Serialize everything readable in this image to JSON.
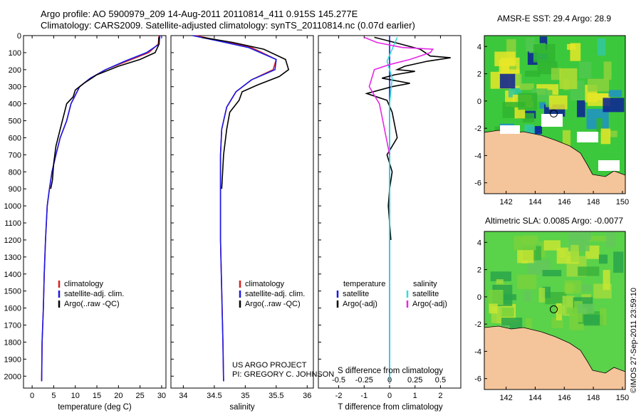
{
  "header": {
    "title_line1": "Argo profile: AO 5900979_209 14-Aug-2011 20110814_411 0.915S 145.277E",
    "title_line2": "Climatology: CARS2009. Satellite-adjusted climatology: synTS_20110814.nc (0.07d earlier)"
  },
  "colors": {
    "climatology": "#d62020",
    "satellite_adj": "#1a1ae6",
    "argo": "#000000",
    "salinity_satellite": "#33dddd",
    "salinity_argo": "#e628e6",
    "land": "#f4c49a",
    "sea_green": "#3cc83c"
  },
  "chart_data": [
    {
      "type": "line",
      "name": "temperature-profile",
      "xlabel": "temperature (deg C)",
      "xlim": [
        -2,
        31
      ],
      "ylim": [
        2070,
        0
      ],
      "xticks": [
        0,
        5,
        10,
        15,
        20,
        25,
        30
      ],
      "yticks": [
        0,
        100,
        200,
        300,
        400,
        500,
        600,
        700,
        800,
        900,
        1000,
        1100,
        1200,
        1300,
        1400,
        1500,
        1600,
        1700,
        1800,
        1900,
        2000
      ],
      "legend": [
        "climatology",
        "satellite-adj. clim.",
        "Argo(..raw -QC)"
      ],
      "series": [
        {
          "name": "climatology",
          "x": [
            29.4,
            29.2,
            27,
            22,
            17,
            13.5,
            11,
            9,
            8,
            6.5,
            5.5,
            4.6,
            4,
            3.5,
            3.1,
            2.8,
            2.6,
            2.3,
            2.2
          ],
          "y": [
            0,
            50,
            100,
            150,
            200,
            250,
            300,
            400,
            500,
            600,
            700,
            800,
            900,
            1000,
            1200,
            1400,
            1600,
            1800,
            2030
          ]
        },
        {
          "name": "satellite-adj. clim.",
          "x": [
            29.6,
            29.4,
            26.5,
            21.5,
            17,
            13.5,
            11,
            9,
            8,
            6.5,
            5.5,
            4.6,
            4,
            3.5,
            3.1,
            2.8,
            2.6,
            2.3,
            2.2
          ],
          "y": [
            0,
            50,
            100,
            150,
            200,
            250,
            300,
            400,
            500,
            600,
            700,
            800,
            900,
            1000,
            1200,
            1400,
            1600,
            1800,
            2030
          ]
        },
        {
          "name": "Argo(..raw -QC)",
          "x": [
            29.3,
            29.4,
            28.5,
            25,
            20,
            15,
            12,
            10,
            9.5,
            8,
            7.5,
            6.5,
            5.5,
            5,
            4.7,
            4.3
          ],
          "y": [
            10,
            50,
            100,
            140,
            180,
            230,
            280,
            320,
            360,
            400,
            450,
            550,
            650,
            750,
            850,
            900
          ]
        }
      ]
    },
    {
      "type": "line",
      "name": "salinity-profile",
      "xlabel": "salinity",
      "xlim": [
        33.8,
        36.1
      ],
      "ylim": [
        2070,
        0
      ],
      "xticks": [
        34,
        34.5,
        35,
        35.5,
        36
      ],
      "legend": [
        "climatology",
        "satellite-adj. clim.",
        "Argo(..raw -QC)"
      ],
      "series": [
        {
          "name": "climatology",
          "x": [
            34.2,
            34.6,
            35.1,
            35.5,
            35.45,
            35.1,
            34.85,
            34.7,
            34.62,
            34.6,
            34.6,
            34.6,
            34.62,
            34.64,
            34.65
          ],
          "y": [
            0,
            30,
            70,
            140,
            200,
            260,
            330,
            420,
            550,
            700,
            900,
            1200,
            1500,
            1800,
            2030
          ]
        },
        {
          "name": "satellite-adj. clim.",
          "x": [
            34.15,
            34.55,
            35.05,
            35.5,
            35.48,
            35.1,
            34.85,
            34.7,
            34.62,
            34.6,
            34.6,
            34.6,
            34.62,
            34.64,
            34.65
          ],
          "y": [
            0,
            30,
            70,
            140,
            200,
            260,
            330,
            420,
            550,
            700,
            900,
            1200,
            1500,
            1800,
            2030
          ]
        },
        {
          "name": "Argo(..raw -QC)",
          "x": [
            34.3,
            34.8,
            35.3,
            35.65,
            35.7,
            35.55,
            35.2,
            34.95,
            34.9,
            34.75,
            34.7,
            34.65,
            34.62
          ],
          "y": [
            10,
            40,
            80,
            140,
            200,
            240,
            290,
            330,
            380,
            450,
            550,
            700,
            900
          ]
        }
      ]
    },
    {
      "type": "line",
      "name": "difference-profile",
      "xlabel_top": "S difference from climatology",
      "xlabel": "T difference from climatology",
      "xlim": [
        -2.8,
        2.8
      ],
      "ylim": [
        2070,
        0
      ],
      "xticks_T": [
        -2,
        -1,
        0,
        1,
        2
      ],
      "xticks_S_labels": [
        "-0.5",
        "-0.25",
        "0",
        "0.25",
        "0.5"
      ],
      "legend": [
        "temperature",
        "satellite",
        "Argo(-adj)",
        "salinity",
        "satellite",
        "Argo(-adj)"
      ],
      "series": [
        {
          "name": "temperature satellite",
          "x": [
            0,
            0,
            0,
            0,
            0
          ],
          "y": [
            0,
            500,
            1000,
            1500,
            2030
          ]
        },
        {
          "name": "temperature Argo(-adj)",
          "x": [
            -0.6,
            0.2,
            1.2,
            1.6,
            2.4,
            1.5,
            0.6,
            0.3,
            1.0,
            0.2,
            -0.3,
            0.8,
            0.1,
            -0.9,
            -0.1,
            0.1,
            0.3,
            -0.1,
            0.1,
            0.0,
            -0.05,
            0.05
          ],
          "y": [
            10,
            40,
            80,
            120,
            130,
            150,
            180,
            200,
            210,
            230,
            250,
            280,
            300,
            340,
            380,
            450,
            600,
            700,
            800,
            900,
            1000,
            1200
          ]
        },
        {
          "name": "salinity satellite",
          "x": [
            0.3,
            0.1,
            -0.1,
            0.1,
            0.0,
            0.0,
            0.0
          ],
          "y": [
            10,
            80,
            150,
            250,
            400,
            1000,
            2030
          ]
        },
        {
          "name": "salinity Argo(-adj)",
          "x": [
            -1.0,
            -0.5,
            0.5,
            1.7,
            1.6,
            0.8,
            0.0,
            -0.6,
            -0.8,
            -0.4,
            -0.2,
            0.0
          ],
          "y": [
            10,
            40,
            70,
            80,
            100,
            140,
            170,
            200,
            300,
            400,
            550,
            700
          ]
        }
      ]
    },
    {
      "type": "heatmap",
      "name": "sst-map",
      "title": "AMSR-E SST: 29.4 Argo: 28.9",
      "xticks": [
        142,
        144,
        146,
        148,
        150
      ],
      "yticks": [
        4,
        2,
        0,
        -2,
        -4,
        -6
      ],
      "argo_position": [
        145.277,
        -0.915
      ]
    },
    {
      "type": "heatmap",
      "name": "sla-map",
      "title": "Altimetric SLA: 0.0085 Argo: -0.0077",
      "xticks": [
        142,
        144,
        146,
        148,
        150
      ],
      "yticks": [
        4,
        2,
        0,
        -2,
        -4,
        -6
      ],
      "argo_position": [
        145.277,
        -0.915
      ]
    }
  ],
  "annotations": {
    "project_line1": "US ARGO PROJECT",
    "project_line2": "PI: GREGORY C. JOHNSON",
    "credit": "©IMOS 27-Sep-2011 23:59:10"
  }
}
